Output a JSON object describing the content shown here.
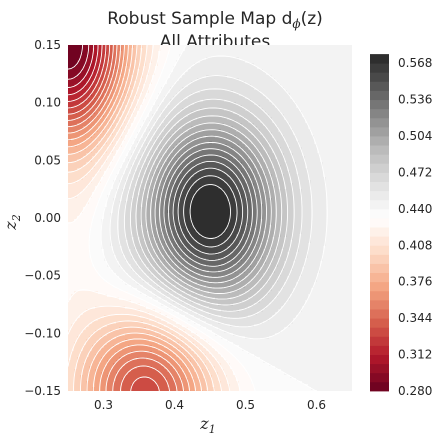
{
  "chart_data": {
    "type": "contour",
    "title_line1": "Robust Sample Map d",
    "title_sub": "ϕ",
    "title_arg": "(z)",
    "title_line2": "All Attributes",
    "xlabel": "z",
    "xlabel_sub": "1",
    "ylabel": "z",
    "ylabel_sub": "2",
    "xlim": [
      0.25,
      0.65
    ],
    "ylim": [
      -0.15,
      0.15
    ],
    "xticks": [
      0.3,
      0.4,
      0.5,
      0.6
    ],
    "xtick_labels": [
      "0.3",
      "0.4",
      "0.5",
      "0.6"
    ],
    "yticks": [
      0.15,
      0.1,
      0.05,
      0.0,
      -0.05,
      -0.1,
      -0.15
    ],
    "ytick_labels": [
      "0.15",
      "0.10",
      "0.05",
      "0.00",
      "−0.05",
      "−0.10",
      "−0.15"
    ],
    "colorbar": {
      "vmin": 0.28,
      "vmax": 0.584,
      "ticks": [
        0.568,
        0.536,
        0.504,
        0.472,
        0.44,
        0.408,
        0.376,
        0.344,
        0.312,
        0.28
      ],
      "tick_labels": [
        "0.568",
        "0.536",
        "0.504",
        "0.472",
        "0.440",
        "0.408",
        "0.376",
        "0.344",
        "0.312",
        "0.280"
      ],
      "colormap": "RdGy",
      "level_step": 0.008
    },
    "field": {
      "baseline": 0.44,
      "peak": {
        "x": 0.45,
        "y": 0.005,
        "value": 0.58
      },
      "low_top_left": {
        "x": 0.25,
        "y": 0.15,
        "value": 0.28
      },
      "low_bottom": {
        "x": 0.36,
        "y": -0.15,
        "value": 0.33
      },
      "valley_left": {
        "x": 0.26,
        "y": -0.02,
        "value": 0.43
      }
    }
  }
}
